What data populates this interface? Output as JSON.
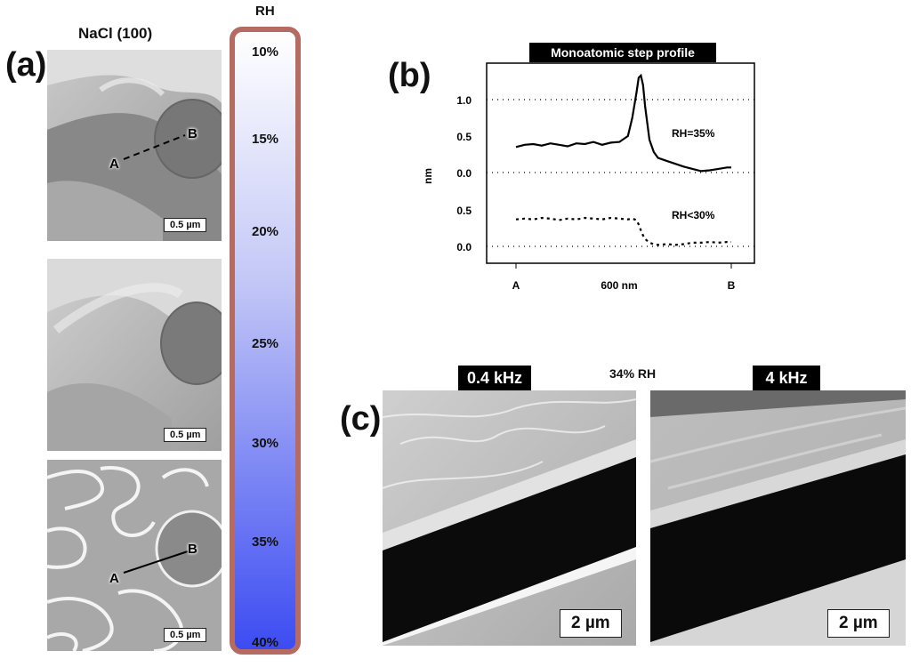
{
  "panel_a": {
    "letter": "(a)",
    "title": "NaCl (100)",
    "images": [
      {
        "scale": "0.5 µm",
        "point_a": "A",
        "point_b": "B"
      },
      {
        "scale": "0.5 µm"
      },
      {
        "scale": "0.5 µm",
        "point_a": "A",
        "point_b": "B"
      }
    ]
  },
  "rh_bar": {
    "title": "RH",
    "ticks": [
      "10%",
      "15%",
      "20%",
      "25%",
      "30%",
      "35%",
      "40%"
    ],
    "color_top": "#ffffff",
    "color_bottom": "#3c4cf2",
    "border_color": "#b56a62"
  },
  "panel_b": {
    "letter": "(b)",
    "banner": "Monoatomic step profile",
    "ylabel": "nm",
    "x_ticks": {
      "start": "A",
      "mid": "600 nm",
      "end": "B"
    },
    "upper_y_ticks": [
      "0.0",
      "0.5",
      "1.0"
    ],
    "lower_y_ticks": [
      "0.0",
      "0.5"
    ],
    "label_upper": "RH=35%",
    "label_lower": "RH<30%"
  },
  "chart_data": {
    "type": "line",
    "title": "Monoatomic step profile",
    "xlabel": "600 nm",
    "ylabel": "nm",
    "x": [
      0.0,
      0.04,
      0.08,
      0.12,
      0.16,
      0.2,
      0.24,
      0.28,
      0.32,
      0.36,
      0.4,
      0.44,
      0.48,
      0.52,
      0.54,
      0.56,
      0.57,
      0.58,
      0.59,
      0.6,
      0.62,
      0.64,
      0.66,
      0.7,
      0.74,
      0.78,
      0.82,
      0.86,
      0.9,
      0.94,
      0.98,
      1.0
    ],
    "series": [
      {
        "name": "RH=35%",
        "style": "solid",
        "values": [
          0.35,
          0.38,
          0.39,
          0.37,
          0.4,
          0.38,
          0.36,
          0.4,
          0.39,
          0.42,
          0.38,
          0.41,
          0.42,
          0.5,
          0.75,
          1.1,
          1.3,
          1.33,
          1.2,
          0.9,
          0.45,
          0.28,
          0.2,
          0.16,
          0.12,
          0.08,
          0.05,
          0.02,
          0.03,
          0.05,
          0.07,
          0.07
        ]
      },
      {
        "name": "RH<30%",
        "style": "dotted",
        "values": [
          0.37,
          0.38,
          0.37,
          0.39,
          0.38,
          0.36,
          0.38,
          0.37,
          0.39,
          0.38,
          0.37,
          0.39,
          0.38,
          0.37,
          0.38,
          0.36,
          0.3,
          0.22,
          0.15,
          0.1,
          0.05,
          0.03,
          0.02,
          0.03,
          0.02,
          0.03,
          0.05,
          0.05,
          0.06,
          0.05,
          0.06,
          0.06
        ]
      }
    ],
    "ylim_upper": [
      0,
      1.3
    ],
    "ylim_lower": [
      0,
      0.5
    ],
    "grid": "dotted at 0.0 and 1.0 (upper), 0.0 (lower)"
  },
  "panel_c": {
    "letter": "(c)",
    "condition": "34% RH",
    "images": [
      {
        "label": "0.4 kHz",
        "scale": "2 µm"
      },
      {
        "label": "4 kHz",
        "scale": "2 µm"
      }
    ]
  }
}
